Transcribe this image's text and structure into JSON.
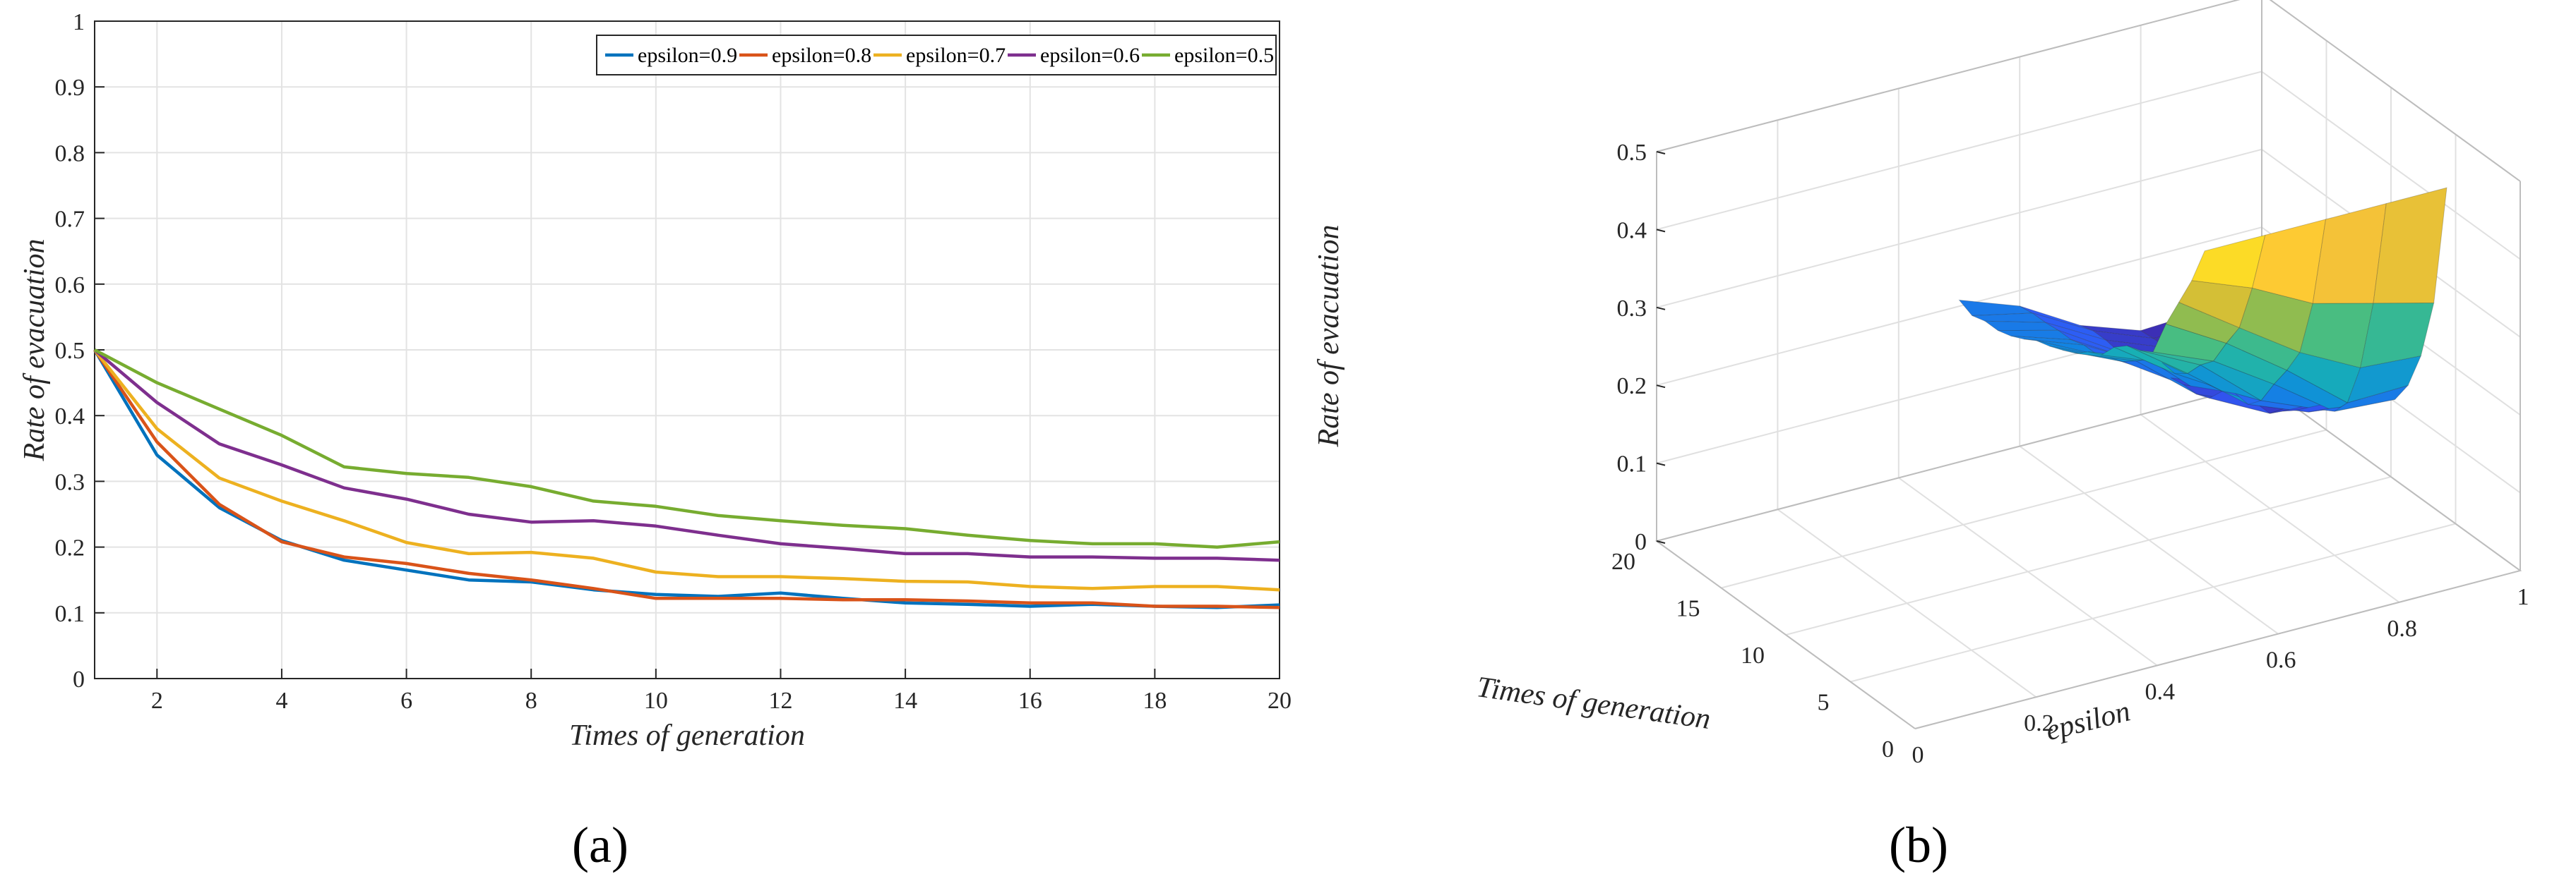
{
  "figure": {
    "panel_a_label": "(a)",
    "panel_b_label": "(b)"
  },
  "chart_data": [
    {
      "type": "line",
      "panel": "a",
      "xlabel": "Times of generation",
      "ylabel": "Rate of evacuation",
      "xlim": [
        1,
        20
      ],
      "ylim": [
        0,
        1
      ],
      "xticks": [
        2,
        4,
        6,
        8,
        10,
        12,
        14,
        16,
        18,
        20
      ],
      "yticks": [
        0,
        0.1,
        0.2,
        0.3,
        0.4,
        0.5,
        0.6,
        0.7,
        0.8,
        0.9,
        1
      ],
      "grid": true,
      "legend": "top-right",
      "x": [
        1,
        2,
        3,
        4,
        5,
        6,
        7,
        8,
        9,
        10,
        11,
        12,
        13,
        14,
        15,
        16,
        17,
        18,
        19,
        20
      ],
      "series": [
        {
          "name": "epsilon=0.9",
          "color": "#0072BD",
          "values": [
            0.5,
            0.34,
            0.26,
            0.21,
            0.18,
            0.165,
            0.15,
            0.147,
            0.135,
            0.128,
            0.125,
            0.13,
            0.122,
            0.115,
            0.113,
            0.11,
            0.113,
            0.11,
            0.108,
            0.112
          ]
        },
        {
          "name": "epsilon=0.8",
          "color": "#D95319",
          "values": [
            0.5,
            0.36,
            0.265,
            0.208,
            0.185,
            0.175,
            0.16,
            0.15,
            0.137,
            0.122,
            0.122,
            0.122,
            0.12,
            0.12,
            0.118,
            0.115,
            0.115,
            0.11,
            0.11,
            0.108
          ]
        },
        {
          "name": "epsilon=0.7",
          "color": "#EDB120",
          "values": [
            0.5,
            0.38,
            0.305,
            0.27,
            0.24,
            0.207,
            0.19,
            0.192,
            0.183,
            0.162,
            0.155,
            0.155,
            0.152,
            0.148,
            0.147,
            0.14,
            0.137,
            0.14,
            0.14,
            0.135
          ]
        },
        {
          "name": "epsilon=0.6",
          "color": "#7E2F8E",
          "values": [
            0.5,
            0.42,
            0.357,
            0.325,
            0.29,
            0.273,
            0.25,
            0.238,
            0.24,
            0.232,
            0.218,
            0.205,
            0.198,
            0.19,
            0.19,
            0.185,
            0.185,
            0.183,
            0.183,
            0.18
          ]
        },
        {
          "name": "epsilon=0.5",
          "color": "#77AC30",
          "values": [
            0.5,
            0.45,
            0.41,
            0.37,
            0.322,
            0.312,
            0.306,
            0.292,
            0.27,
            0.262,
            0.248,
            0.24,
            0.233,
            0.228,
            0.218,
            0.21,
            0.205,
            0.205,
            0.2,
            0.208
          ]
        }
      ]
    },
    {
      "type": "surface",
      "panel": "b",
      "xlabel": "epsilon",
      "ylabel": "Times of generation",
      "zlabel": "Rate of evacuation",
      "xlim": [
        0,
        1
      ],
      "ylim": [
        0,
        20
      ],
      "zlim": [
        0,
        0.5
      ],
      "xticks": [
        0,
        0.2,
        0.4,
        0.6,
        0.8,
        1
      ],
      "yticks": [
        0,
        5,
        10,
        15,
        20
      ],
      "zticks": [
        0,
        0.1,
        0.2,
        0.3,
        0.4,
        0.5
      ],
      "grid": true,
      "colormap": [
        "#3E26A8",
        "#2F5AF6",
        "#0E8BDF",
        "#18B0B4",
        "#4ABD80",
        "#B6BC35",
        "#FEC338",
        "#F9FB0E"
      ],
      "epsilon": [
        0.5,
        0.6,
        0.7,
        0.8,
        0.9
      ],
      "generation": [
        1,
        2,
        3,
        4,
        5,
        6,
        7,
        8,
        9,
        10,
        11,
        12,
        13,
        14,
        15,
        16,
        17,
        18,
        19,
        20
      ],
      "z": [
        [
          0.5,
          0.45,
          0.41,
          0.37,
          0.322,
          0.312,
          0.306,
          0.292,
          0.27,
          0.262,
          0.248,
          0.24,
          0.233,
          0.228,
          0.218,
          0.21,
          0.205,
          0.205,
          0.2,
          0.208
        ],
        [
          0.5,
          0.42,
          0.357,
          0.325,
          0.29,
          0.273,
          0.25,
          0.238,
          0.24,
          0.232,
          0.218,
          0.205,
          0.198,
          0.19,
          0.19,
          0.185,
          0.185,
          0.183,
          0.183,
          0.18
        ],
        [
          0.5,
          0.38,
          0.305,
          0.27,
          0.24,
          0.207,
          0.19,
          0.192,
          0.183,
          0.162,
          0.155,
          0.155,
          0.152,
          0.148,
          0.147,
          0.14,
          0.137,
          0.14,
          0.14,
          0.135
        ],
        [
          0.5,
          0.36,
          0.265,
          0.208,
          0.185,
          0.175,
          0.16,
          0.15,
          0.137,
          0.122,
          0.122,
          0.122,
          0.12,
          0.12,
          0.118,
          0.115,
          0.115,
          0.11,
          0.11,
          0.108
        ],
        [
          0.5,
          0.34,
          0.26,
          0.21,
          0.18,
          0.165,
          0.15,
          0.147,
          0.135,
          0.128,
          0.125,
          0.13,
          0.122,
          0.115,
          0.113,
          0.11,
          0.113,
          0.11,
          0.108,
          0.112
        ]
      ]
    }
  ]
}
